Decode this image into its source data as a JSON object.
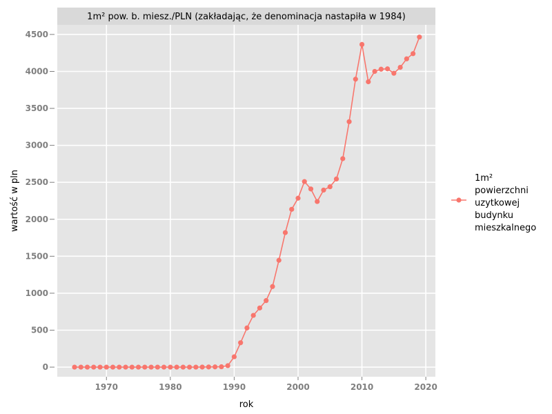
{
  "chart_data": {
    "type": "line",
    "title": "1m² pow. b. miesz./PLN (zakładając, że denominacja nastapiła w 1984)",
    "xlabel": "rok",
    "ylabel": "wartość w pln",
    "xlim": [
      1962.3,
      2021.5
    ],
    "ylim": [
      -130,
      4630
    ],
    "x_ticks": [
      1970,
      1980,
      1990,
      2000,
      2010,
      2020
    ],
    "y_ticks": [
      0,
      500,
      1000,
      1500,
      2000,
      2500,
      3000,
      3500,
      4000,
      4500
    ],
    "x_tick_labels": [
      "1970",
      "1980",
      "1990",
      "2000",
      "2010",
      "2020"
    ],
    "y_tick_labels": [
      "0",
      "500",
      "1000",
      "1500",
      "2000",
      "2500",
      "3000",
      "3500",
      "4000",
      "4500"
    ],
    "grid": true,
    "legend_position": "right",
    "colors": {
      "panel": "#e5e5e5",
      "grid": "#ffffff",
      "strip": "#d9d9d9",
      "series": "#f8766d"
    },
    "series": [
      {
        "name": "1m² powierzchni uzytkowej budynku mieszkalnego",
        "legend_lines": [
          "1m²",
          "powierzchni",
          "uzytkowej",
          "budynku",
          "mieszkalnego"
        ],
        "x": [
          1965,
          1966,
          1967,
          1968,
          1969,
          1970,
          1971,
          1972,
          1973,
          1974,
          1975,
          1976,
          1977,
          1978,
          1979,
          1980,
          1981,
          1982,
          1983,
          1984,
          1985,
          1986,
          1987,
          1988,
          1989,
          1990,
          1991,
          1992,
          1993,
          1994,
          1995,
          1996,
          1997,
          1998,
          1999,
          2000,
          2001,
          2002,
          2003,
          2004,
          2005,
          2006,
          2007,
          2008,
          2009,
          2010,
          2011,
          2012,
          2013,
          2014,
          2015,
          2016,
          2017,
          2018,
          2019
        ],
        "y": [
          0,
          0,
          0,
          0,
          0,
          0,
          0,
          0,
          0,
          0,
          0,
          0,
          0,
          0,
          0,
          0,
          0,
          0,
          0,
          0,
          1,
          2,
          3,
          5,
          20,
          140,
          330,
          530,
          700,
          800,
          900,
          1090,
          1445,
          1820,
          2135,
          2285,
          2510,
          2410,
          2240,
          2395,
          2440,
          2545,
          2820,
          3320,
          3895,
          4365,
          3860,
          4000,
          4030,
          4035,
          3975,
          4055,
          4170,
          4240,
          4465
        ]
      }
    ]
  }
}
